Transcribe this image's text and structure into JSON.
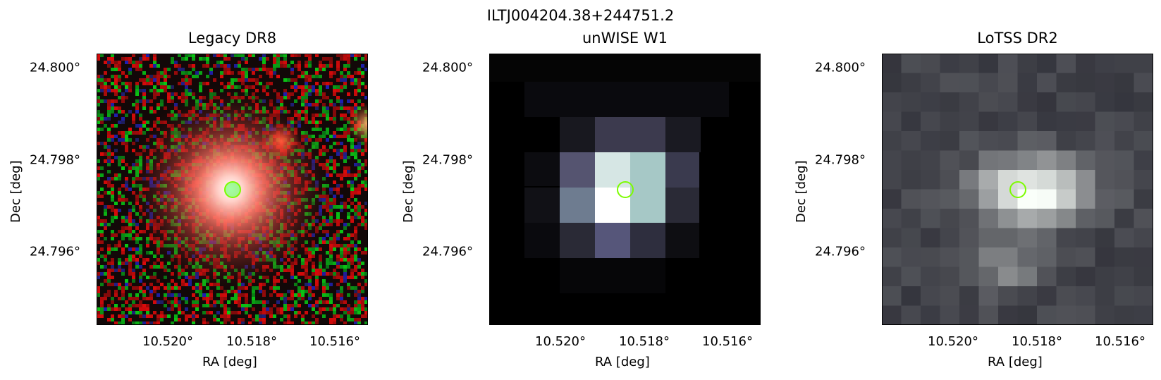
{
  "figure": {
    "title": "ILTJ004204.38+244751.2"
  },
  "panels": [
    {
      "title": "Legacy DR8",
      "xlabel": "RA [deg]",
      "ylabel": "Dec [deg]",
      "xticks": [
        "10.520°",
        "10.518°",
        "10.516°"
      ],
      "yticks": [
        "24.800°",
        "24.798°",
        "24.796°"
      ],
      "marker_color": "#7cfc00"
    },
    {
      "title": "unWISE W1",
      "xlabel": "RA [deg]",
      "ylabel": "Dec [deg]",
      "xticks": [
        "10.520°",
        "10.518°",
        "10.516°"
      ],
      "yticks": [
        "24.800°",
        "24.798°",
        "24.796°"
      ],
      "marker_color": "#7cfc00"
    },
    {
      "title": "LoTSS DR2",
      "xlabel": "RA [deg]",
      "ylabel": "Dec [deg]",
      "xticks": [
        "10.520°",
        "10.518°",
        "10.516°"
      ],
      "yticks": [
        "24.800°",
        "24.798°",
        "24.796°"
      ],
      "marker_color": "#7cfc00"
    }
  ]
}
